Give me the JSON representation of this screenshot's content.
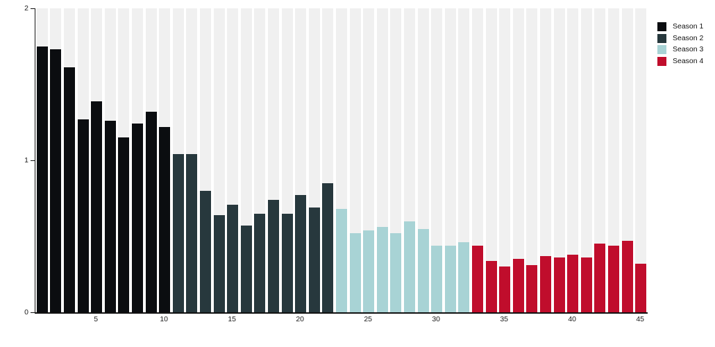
{
  "chart_data": {
    "type": "bar",
    "title": "",
    "xlabel": "",
    "ylabel": "",
    "x_range": [
      1,
      45
    ],
    "ylim": [
      0,
      2
    ],
    "yticks": [
      2,
      1,
      0
    ],
    "xticks": [
      5,
      10,
      15,
      20,
      25,
      30,
      35,
      40,
      45
    ],
    "grid": "full-height light background band behind every bar slot",
    "legend_position": "top-right",
    "series": [
      {
        "name": "Season 1",
        "color": "#0b0d10",
        "start_x": 1,
        "values": [
          1.75,
          1.73,
          1.61,
          1.27,
          1.39,
          1.26,
          1.15,
          1.24,
          1.32,
          1.22
        ]
      },
      {
        "name": "Season 2",
        "color": "#27383d",
        "start_x": 11,
        "values": [
          1.04,
          1.04,
          0.8,
          0.64,
          0.71,
          0.57,
          0.65,
          0.74,
          0.65,
          0.77,
          0.69,
          0.85
        ]
      },
      {
        "name": "Season 3",
        "color": "#a8d3d5",
        "start_x": 23,
        "values": [
          0.68,
          0.52,
          0.54,
          0.56,
          0.52,
          0.6,
          0.55,
          0.44,
          0.44,
          0.46
        ]
      },
      {
        "name": "Season 4",
        "color": "#c00d2c",
        "start_x": 33,
        "values": [
          0.44,
          0.34,
          0.3,
          0.35,
          0.31,
          0.37,
          0.36,
          0.38,
          0.36,
          0.45,
          0.44,
          0.47,
          0.32
        ]
      }
    ]
  },
  "colors": {
    "background": "#ffffff",
    "band": "#f0f0f0",
    "axis": "#111111",
    "tick_label": "#1a1a1a"
  }
}
